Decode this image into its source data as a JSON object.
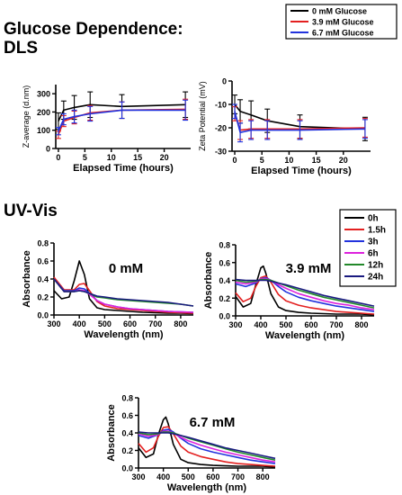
{
  "headings": {
    "dls_line1": "Glucose Dependence:",
    "dls_line2": "DLS",
    "uvvis": "UV-Vis"
  },
  "chart_data": [
    {
      "id": "z_average",
      "type": "line",
      "title": "",
      "xlabel": "Elapsed Time (hours)",
      "ylabel": "Z-average (d.nm)",
      "xlim": [
        -0.5,
        25
      ],
      "ylim": [
        0,
        350
      ],
      "xticks": [
        0,
        5,
        10,
        15,
        20
      ],
      "yticks": [
        0,
        100,
        200,
        300
      ],
      "legend": "top-right",
      "series": [
        {
          "name": "0 mM Glucose",
          "color": "#000000",
          "x": [
            0,
            1,
            3,
            6,
            12,
            24
          ],
          "y": [
            150,
            210,
            225,
            240,
            230,
            240
          ],
          "err": [
            45,
            50,
            65,
            70,
            65,
            70
          ]
        },
        {
          "name": "3.9 mM Glucose",
          "color": "#e32020",
          "x": [
            0,
            1,
            3,
            6,
            12,
            24
          ],
          "y": [
            75,
            150,
            170,
            195,
            210,
            215
          ],
          "err": [
            20,
            30,
            35,
            40,
            45,
            55
          ]
        },
        {
          "name": "6.7 mM Glucose",
          "color": "#2233dd",
          "x": [
            0,
            1,
            3,
            6,
            12,
            24
          ],
          "y": [
            95,
            160,
            175,
            190,
            210,
            210
          ],
          "err": [
            20,
            30,
            35,
            40,
            45,
            55
          ]
        }
      ]
    },
    {
      "id": "zeta_potential",
      "type": "line",
      "title": "",
      "xlabel": "Elapsed Time (hours)",
      "ylabel": "Zeta Potential (mV)",
      "xlim": [
        -0.5,
        25
      ],
      "ylim": [
        -30,
        0
      ],
      "xticks": [
        0,
        5,
        10,
        15,
        20
      ],
      "yticks": [
        -30,
        -20,
        -10,
        0
      ],
      "series": [
        {
          "name": "0 mM Glucose",
          "color": "#000000",
          "x": [
            0,
            1,
            3,
            6,
            12,
            24
          ],
          "y": [
            -10,
            -13,
            -14.5,
            -17,
            -19.5,
            -20.5
          ],
          "err": [
            4,
            5,
            6,
            5,
            5,
            5
          ]
        },
        {
          "name": "3.9 mM Glucose",
          "color": "#e32020",
          "x": [
            0,
            1,
            3,
            6,
            12,
            24
          ],
          "y": [
            -14,
            -21,
            -20.5,
            -20.5,
            -20.5,
            -20
          ],
          "err": [
            3,
            4,
            4,
            4,
            4,
            4
          ]
        },
        {
          "name": "6.7 mM Glucose",
          "color": "#2233dd",
          "x": [
            0,
            1,
            3,
            6,
            12,
            24
          ],
          "y": [
            -13,
            -22,
            -21,
            -21,
            -21,
            -20.5
          ],
          "err": [
            3,
            4,
            4,
            4,
            4,
            4
          ]
        }
      ]
    },
    {
      "id": "uv_0mM",
      "type": "line",
      "title": "0 mM",
      "xlabel": "Wavelength (nm)",
      "ylabel": "Absorbance",
      "xlim": [
        300,
        850
      ],
      "ylim": [
        0,
        0.8
      ],
      "xticks": [
        300,
        400,
        500,
        600,
        700,
        800
      ],
      "yticks": [
        0.0,
        0.2,
        0.4,
        0.6,
        0.8
      ],
      "legend": "top-right",
      "series": [
        {
          "name": "0h",
          "color": "#000000",
          "x": [
            300,
            330,
            360,
            380,
            400,
            420,
            440,
            470,
            500,
            550,
            600,
            650,
            700,
            750,
            800,
            850
          ],
          "y": [
            0.27,
            0.18,
            0.2,
            0.38,
            0.6,
            0.45,
            0.18,
            0.08,
            0.06,
            0.05,
            0.04,
            0.03,
            0.025,
            0.02,
            0.02,
            0.015
          ]
        },
        {
          "name": "1.5h",
          "color": "#e32020",
          "x": [
            300,
            340,
            380,
            400,
            420,
            440,
            470,
            500,
            550,
            600,
            650,
            700,
            750,
            800,
            850
          ],
          "y": [
            0.42,
            0.28,
            0.28,
            0.34,
            0.35,
            0.27,
            0.15,
            0.1,
            0.07,
            0.06,
            0.05,
            0.04,
            0.03,
            0.025,
            0.02
          ]
        },
        {
          "name": "3h",
          "color": "#2233dd",
          "x": [
            300,
            340,
            380,
            400,
            420,
            440,
            470,
            500,
            550,
            600,
            650,
            700,
            750,
            800,
            850
          ],
          "y": [
            0.4,
            0.27,
            0.27,
            0.3,
            0.29,
            0.24,
            0.16,
            0.12,
            0.09,
            0.07,
            0.06,
            0.05,
            0.04,
            0.035,
            0.03
          ]
        },
        {
          "name": "6h",
          "color": "#dd22dd",
          "x": [
            300,
            340,
            380,
            400,
            420,
            440,
            470,
            500,
            550,
            600,
            650,
            700,
            750,
            800,
            850
          ],
          "y": [
            0.4,
            0.26,
            0.26,
            0.28,
            0.27,
            0.23,
            0.16,
            0.12,
            0.09,
            0.07,
            0.06,
            0.05,
            0.04,
            0.035,
            0.03
          ]
        },
        {
          "name": "12h",
          "color": "#22882a",
          "x": [
            300,
            340,
            380,
            400,
            420,
            440,
            470,
            500,
            550,
            600,
            650,
            700,
            750,
            800,
            850
          ],
          "y": [
            0.4,
            0.26,
            0.26,
            0.27,
            0.26,
            0.24,
            0.2,
            0.19,
            0.17,
            0.16,
            0.15,
            0.14,
            0.13,
            0.12,
            0.1
          ]
        },
        {
          "name": "24h",
          "color": "#1a1a80",
          "x": [
            300,
            340,
            380,
            400,
            420,
            440,
            470,
            500,
            550,
            600,
            650,
            700,
            750,
            800,
            850
          ],
          "y": [
            0.4,
            0.26,
            0.26,
            0.27,
            0.26,
            0.24,
            0.21,
            0.2,
            0.18,
            0.17,
            0.16,
            0.15,
            0.14,
            0.12,
            0.1
          ]
        }
      ]
    },
    {
      "id": "uv_39mM",
      "type": "line",
      "title": "3.9 mM",
      "xlabel": "Wavelength (nm)",
      "ylabel": "Absorbance",
      "xlim": [
        300,
        850
      ],
      "ylim": [
        0,
        0.8
      ],
      "xticks": [
        300,
        400,
        500,
        600,
        700,
        800
      ],
      "yticks": [
        0.0,
        0.2,
        0.4,
        0.6,
        0.8
      ],
      "series": [
        {
          "name": "0h",
          "color": "#000000",
          "x": [
            300,
            330,
            360,
            380,
            400,
            410,
            420,
            440,
            470,
            500,
            550,
            600,
            650,
            700,
            750,
            800,
            850
          ],
          "y": [
            0.22,
            0.1,
            0.14,
            0.35,
            0.54,
            0.56,
            0.48,
            0.25,
            0.1,
            0.06,
            0.04,
            0.03,
            0.025,
            0.02,
            0.02,
            0.02,
            0.01
          ]
        },
        {
          "name": "1.5h",
          "color": "#e32020",
          "x": [
            300,
            330,
            360,
            380,
            400,
            420,
            440,
            470,
            500,
            550,
            600,
            650,
            700,
            750,
            800,
            850
          ],
          "y": [
            0.26,
            0.16,
            0.2,
            0.33,
            0.43,
            0.45,
            0.38,
            0.24,
            0.17,
            0.12,
            0.09,
            0.07,
            0.05,
            0.04,
            0.03,
            0.02
          ]
        },
        {
          "name": "3h",
          "color": "#2233dd",
          "x": [
            300,
            340,
            380,
            400,
            420,
            440,
            470,
            500,
            550,
            600,
            650,
            700,
            750,
            800,
            850
          ],
          "y": [
            0.36,
            0.33,
            0.37,
            0.42,
            0.43,
            0.4,
            0.33,
            0.27,
            0.21,
            0.17,
            0.14,
            0.11,
            0.09,
            0.07,
            0.05
          ]
        },
        {
          "name": "6h",
          "color": "#dd22dd",
          "x": [
            300,
            340,
            380,
            400,
            420,
            440,
            470,
            500,
            550,
            600,
            650,
            700,
            750,
            800,
            850
          ],
          "y": [
            0.38,
            0.36,
            0.38,
            0.42,
            0.42,
            0.4,
            0.35,
            0.31,
            0.25,
            0.21,
            0.17,
            0.14,
            0.12,
            0.09,
            0.07
          ]
        },
        {
          "name": "12h",
          "color": "#22882a",
          "x": [
            300,
            340,
            380,
            400,
            420,
            440,
            470,
            500,
            550,
            600,
            650,
            700,
            750,
            800,
            850
          ],
          "y": [
            0.4,
            0.38,
            0.39,
            0.41,
            0.41,
            0.4,
            0.37,
            0.34,
            0.29,
            0.25,
            0.21,
            0.18,
            0.15,
            0.12,
            0.09
          ]
        },
        {
          "name": "24h",
          "color": "#1a1a80",
          "x": [
            300,
            340,
            380,
            400,
            420,
            440,
            470,
            500,
            550,
            600,
            650,
            700,
            750,
            800,
            850
          ],
          "y": [
            0.41,
            0.4,
            0.4,
            0.4,
            0.4,
            0.39,
            0.37,
            0.35,
            0.31,
            0.27,
            0.23,
            0.2,
            0.17,
            0.14,
            0.11
          ]
        }
      ]
    },
    {
      "id": "uv_67mM",
      "type": "line",
      "title": "6.7 mM",
      "xlabel": "Wavelength (nm)",
      "ylabel": "Absorbance",
      "xlim": [
        300,
        850
      ],
      "ylim": [
        0,
        0.8
      ],
      "xticks": [
        300,
        400,
        500,
        600,
        700,
        800
      ],
      "yticks": [
        0.0,
        0.2,
        0.4,
        0.6,
        0.8
      ],
      "series": [
        {
          "name": "0h",
          "color": "#000000",
          "x": [
            300,
            330,
            360,
            380,
            400,
            410,
            420,
            440,
            470,
            500,
            550,
            600,
            650,
            700,
            750,
            800,
            850
          ],
          "y": [
            0.23,
            0.12,
            0.16,
            0.38,
            0.55,
            0.58,
            0.5,
            0.27,
            0.1,
            0.06,
            0.04,
            0.03,
            0.025,
            0.02,
            0.02,
            0.02,
            0.01
          ]
        },
        {
          "name": "1.5h",
          "color": "#e32020",
          "x": [
            300,
            330,
            360,
            380,
            400,
            420,
            440,
            470,
            500,
            550,
            600,
            650,
            700,
            750,
            800,
            850
          ],
          "y": [
            0.28,
            0.18,
            0.23,
            0.36,
            0.46,
            0.47,
            0.39,
            0.25,
            0.18,
            0.13,
            0.1,
            0.07,
            0.05,
            0.04,
            0.03,
            0.02
          ]
        },
        {
          "name": "3h",
          "color": "#2233dd",
          "x": [
            300,
            340,
            380,
            400,
            420,
            440,
            470,
            500,
            550,
            600,
            650,
            700,
            750,
            800,
            850
          ],
          "y": [
            0.37,
            0.34,
            0.38,
            0.43,
            0.44,
            0.41,
            0.34,
            0.28,
            0.22,
            0.18,
            0.15,
            0.12,
            0.09,
            0.07,
            0.05
          ]
        },
        {
          "name": "6h",
          "color": "#dd22dd",
          "x": [
            300,
            340,
            380,
            400,
            420,
            440,
            470,
            500,
            550,
            600,
            650,
            700,
            750,
            800,
            850
          ],
          "y": [
            0.39,
            0.36,
            0.38,
            0.42,
            0.42,
            0.4,
            0.35,
            0.31,
            0.26,
            0.22,
            0.18,
            0.15,
            0.12,
            0.09,
            0.07
          ]
        },
        {
          "name": "12h",
          "color": "#22882a",
          "x": [
            300,
            340,
            380,
            400,
            420,
            440,
            470,
            500,
            550,
            600,
            650,
            700,
            750,
            800,
            850
          ],
          "y": [
            0.4,
            0.38,
            0.39,
            0.41,
            0.41,
            0.4,
            0.37,
            0.34,
            0.3,
            0.26,
            0.22,
            0.18,
            0.15,
            0.12,
            0.09
          ]
        },
        {
          "name": "24h",
          "color": "#1a1a80",
          "x": [
            300,
            340,
            380,
            400,
            420,
            440,
            470,
            500,
            550,
            600,
            650,
            700,
            750,
            800,
            850
          ],
          "y": [
            0.41,
            0.4,
            0.4,
            0.4,
            0.4,
            0.39,
            0.37,
            0.35,
            0.31,
            0.27,
            0.23,
            0.2,
            0.17,
            0.14,
            0.11
          ]
        }
      ]
    }
  ]
}
